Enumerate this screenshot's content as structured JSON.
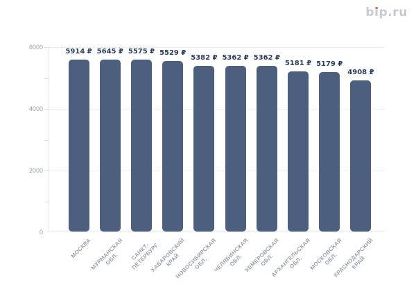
{
  "logo": {
    "text": "bip.ru",
    "color": "#c5cad5",
    "dot_color": "#ef6a4e"
  },
  "chart_data": {
    "type": "bar",
    "title": "",
    "xlabel": "",
    "ylabel": "",
    "categories": [
      "МОСКВА",
      "МУРМАНСКАЯ ОБЛ.",
      "САНКТ-ПЕТЕРБУРГ",
      "ХАБАРОВСКИЙ КРАЙ",
      "НОВОСИБИРСКАЯ ОБЛ.",
      "ЧЕЛЯБИНСКАЯ ОБЛ.",
      "КЕМЕРОВСКАЯ ОБЛ.",
      "АРХАНГЕЛЬСКАЯ ОБЛ.",
      "МОСКОВСКАЯ ОБЛ.",
      "КРАСНОДАРСКИЙ КРАЙ"
    ],
    "tick_labels": [
      "МОСКВА",
      "МУРМАНСКАЯ\nОБЛ.",
      "САНКТ-\nПЕТЕРБУРГ",
      "ХАБАРОВСКИЙ\nКРАЙ",
      "НОВОСИБИРСКАЯ\nОБЛ.",
      "ЧЕЛЯБИНСКАЯ\nОБЛ.",
      "КЕМЕРОВСКАЯ\nОБЛ.",
      "АРХАНГЕЛЬСКАЯ\nОБЛ.",
      "МОСКОВСКАЯ\nОБЛ.",
      "КРАСНОДАРСКИЙ\nКРАЙ"
    ],
    "values": [
      5914,
      5645,
      5575,
      5529,
      5382,
      5362,
      5362,
      5181,
      5179,
      4908
    ],
    "value_suffix": "₽",
    "value_labels": [
      "5914 ₽",
      "5645 ₽",
      "5575 ₽",
      "5529 ₽",
      "5382 ₽",
      "5362 ₽",
      "5362 ₽",
      "5181 ₽",
      "5179 ₽",
      "4908 ₽"
    ],
    "y_axis": {
      "min": 0,
      "max": 6000,
      "tick_values": [
        0,
        2000,
        4000,
        6000
      ],
      "tick_labels": [
        "0",
        "2000",
        "4000",
        "6000"
      ],
      "minor_ticks": [
        1000,
        3000,
        5000
      ]
    },
    "legend": "none",
    "grid": "dotted-horizontal-major",
    "bar_color": "#4c5f7e",
    "value_label_color": "#2b3d5f",
    "axis_label_color": "#9aa1af"
  }
}
